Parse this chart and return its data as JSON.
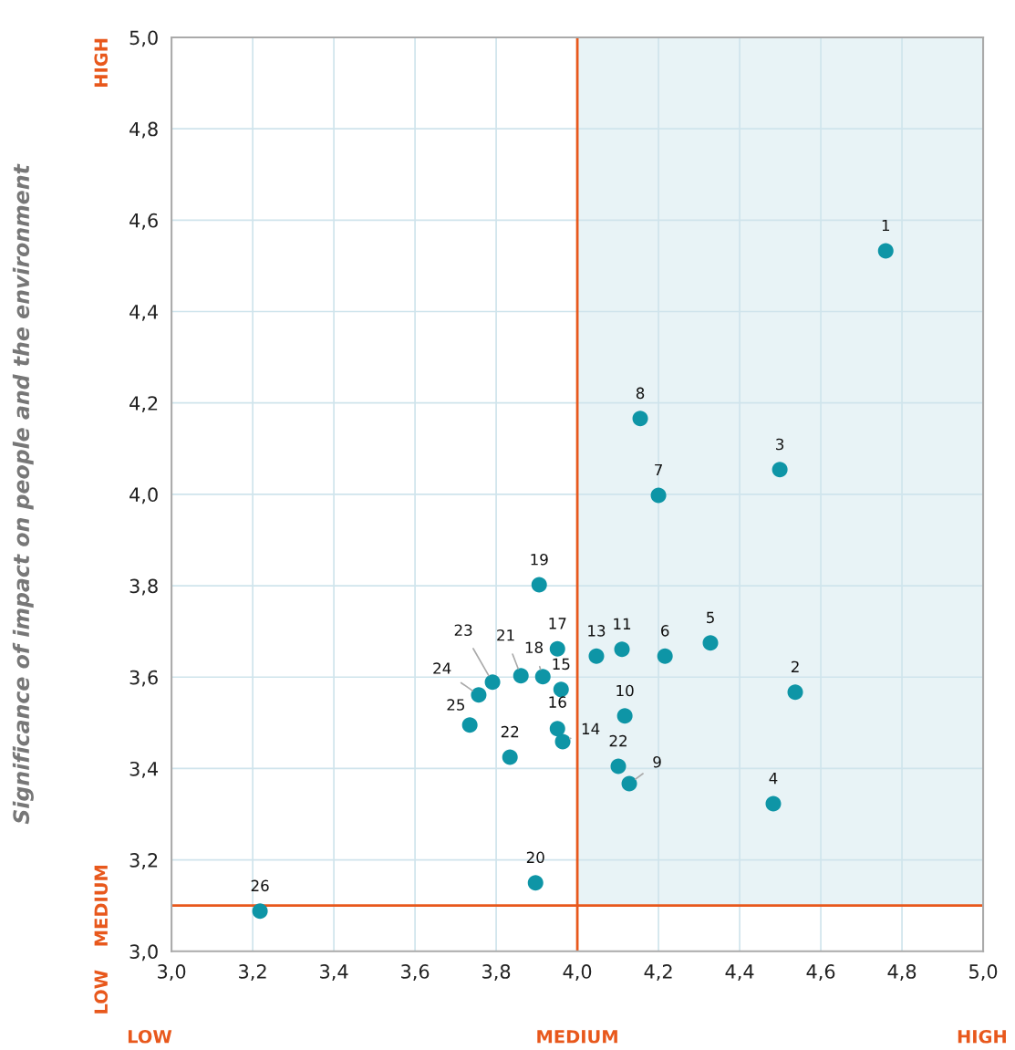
{
  "chart_data": {
    "type": "scatter",
    "ylabel": "Significance of impact on people and the environment",
    "annotations": [
      "HIGH",
      "MEDIUM",
      "LOW",
      "LOW",
      "MEDIUM",
      "HIGH",
      {
        "text": "1",
        "x": 4.76,
        "y": 4.533
      },
      {
        "text": "2",
        "x": 4.537,
        "y": 3.567
      },
      {
        "text": "3",
        "x": 4.499,
        "y": 4.054
      },
      {
        "text": "4",
        "x": 4.483,
        "y": 3.323
      },
      {
        "text": "5",
        "x": 4.328,
        "y": 3.675
      },
      {
        "text": "6",
        "x": 4.216,
        "y": 3.646
      },
      {
        "text": "7",
        "x": 4.2,
        "y": 3.998
      },
      {
        "text": "8",
        "x": 4.155,
        "y": 4.166
      },
      {
        "text": "9",
        "x": 4.128,
        "y": 3.367
      },
      {
        "text": "10",
        "x": 4.117,
        "y": 3.515
      },
      {
        "text": "11",
        "x": 4.11,
        "y": 3.661
      },
      {
        "text": "13",
        "x": 4.047,
        "y": 3.646
      },
      {
        "text": "14",
        "x": 3.964,
        "y": 3.459
      },
      {
        "text": "15",
        "x": 3.96,
        "y": 3.573
      },
      {
        "text": "16",
        "x": 3.951,
        "y": 3.487
      },
      {
        "text": "17",
        "x": 3.951,
        "y": 3.662
      },
      {
        "text": "18",
        "x": 3.915,
        "y": 3.601
      },
      {
        "text": "19",
        "x": 3.906,
        "y": 3.802
      },
      {
        "text": "20",
        "x": 3.897,
        "y": 3.15
      },
      {
        "text": "21",
        "x": 3.861,
        "y": 3.603
      },
      {
        "text": "22",
        "x": 3.834,
        "y": 3.425
      },
      {
        "text": "22",
        "x": 4.101,
        "y": 3.405
      },
      {
        "text": "23",
        "x": 3.791,
        "y": 3.589
      },
      {
        "text": "24",
        "x": 3.757,
        "y": 3.561
      },
      {
        "text": "25",
        "x": 3.735,
        "y": 3.495
      },
      {
        "text": "26",
        "x": 3.218,
        "y": 3.088
      }
    ],
    "xlim": [
      3.0,
      5.0
    ],
    "ylim": [
      3.0,
      5.0
    ],
    "xticks": [
      {
        "value": 3.0,
        "label": "3,0"
      },
      {
        "value": 3.2,
        "label": "3,2"
      },
      {
        "value": 3.4,
        "label": "3,4"
      },
      {
        "value": 3.6,
        "label": "3,6"
      },
      {
        "value": 3.8,
        "label": "3,8"
      },
      {
        "value": 4.0,
        "label": "4,0"
      },
      {
        "value": 4.2,
        "label": "4,2"
      },
      {
        "value": 4.4,
        "label": "4,4"
      },
      {
        "value": 4.6,
        "label": "4,6"
      },
      {
        "value": 4.8,
        "label": "4,8"
      },
      {
        "value": 5.0,
        "label": "5,0"
      }
    ],
    "yticks": [
      {
        "value": 3.0,
        "label": "3,0"
      },
      {
        "value": 3.2,
        "label": "3,2"
      },
      {
        "value": 3.4,
        "label": "3,4"
      },
      {
        "value": 3.6,
        "label": "3,6"
      },
      {
        "value": 3.8,
        "label": "3,8"
      },
      {
        "value": 4.0,
        "label": "4,0"
      },
      {
        "value": 4.2,
        "label": "4,2"
      },
      {
        "value": 4.4,
        "label": "4,4"
      },
      {
        "value": 4.6,
        "label": "4,6"
      },
      {
        "value": 4.8,
        "label": "4,8"
      },
      {
        "value": 5.0,
        "label": "5,0"
      }
    ],
    "grid": true,
    "marker": "circle",
    "ref_lines": [
      {
        "axis": "x",
        "value": 4.0,
        "color": "#e8581c"
      },
      {
        "axis": "y",
        "value": 3.1,
        "color": "#e8581c"
      }
    ],
    "bands": [
      {
        "axis": "x",
        "from": 4.0,
        "to": 5.0,
        "color": "#e8f3f6"
      }
    ],
    "series": [
      {
        "color": "#0e95a6",
        "x": [
          4.76,
          4.537,
          4.499,
          4.483,
          4.328,
          4.216,
          4.2,
          4.155,
          4.128,
          4.117,
          4.11,
          4.047,
          3.964,
          3.96,
          3.951,
          3.951,
          3.915,
          3.906,
          3.897,
          3.861,
          3.834,
          4.101,
          3.791,
          3.757,
          3.735,
          3.218
        ],
        "values": [
          4.533,
          3.567,
          4.054,
          3.323,
          3.675,
          3.646,
          3.998,
          4.166,
          3.367,
          3.515,
          3.661,
          3.646,
          3.459,
          3.573,
          3.487,
          3.662,
          3.601,
          3.802,
          3.15,
          3.603,
          3.425,
          3.405,
          3.589,
          3.561,
          3.495,
          3.088
        ]
      }
    ]
  }
}
